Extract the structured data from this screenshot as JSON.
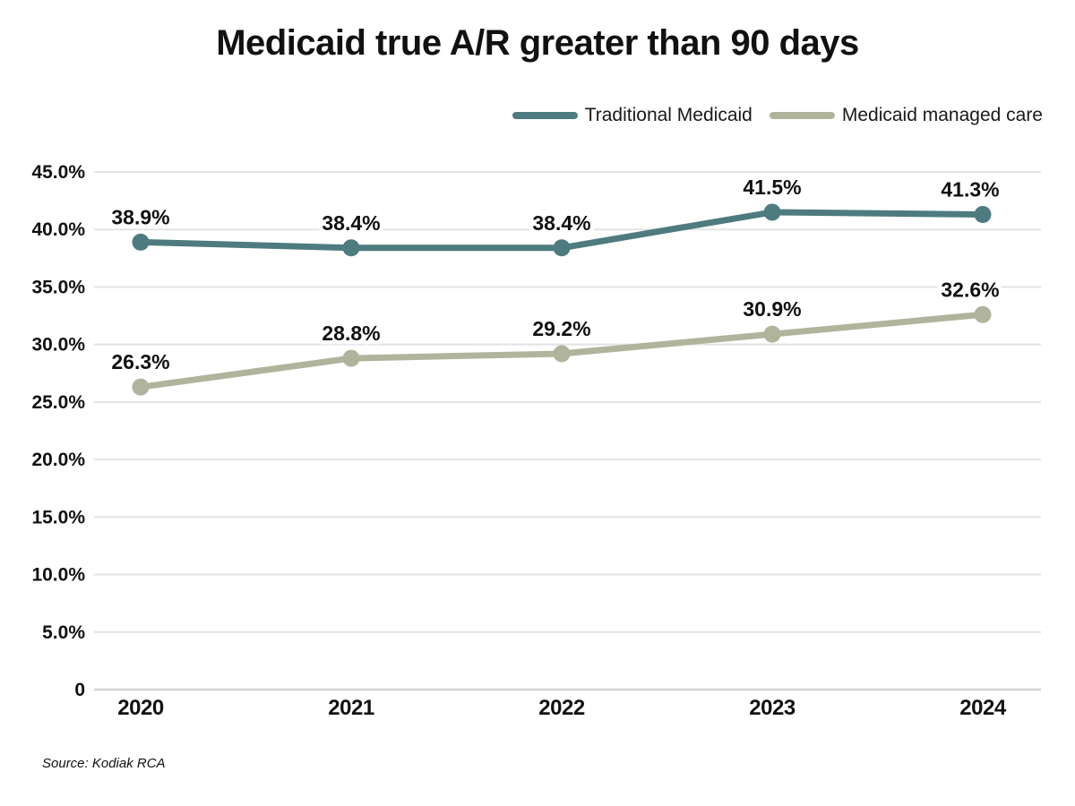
{
  "title": "Medicaid true A/R greater than 90 days",
  "source": "Source: Kodiak RCA",
  "colors": {
    "grid": "#e3e3e3",
    "zero_axis": "#d4d4d4",
    "text": "#111111",
    "background": "#ffffff"
  },
  "chart_data": {
    "type": "line",
    "title": "Medicaid true A/R greater than 90 days",
    "categories": [
      "2020",
      "2021",
      "2022",
      "2023",
      "2024"
    ],
    "series": [
      {
        "name": "Traditional Medicaid",
        "color": "#4e7b7f",
        "values": [
          38.9,
          38.4,
          38.4,
          41.5,
          41.3
        ]
      },
      {
        "name": "Medicaid managed care",
        "color": "#b1b49c",
        "values": [
          26.3,
          28.8,
          29.2,
          30.9,
          32.6
        ]
      }
    ],
    "xlabel": "",
    "ylabel": "",
    "ylim": [
      0,
      45
    ],
    "ytick_step": 5,
    "ytick_labels": [
      "0",
      "5.0%",
      "10.0%",
      "15.0%",
      "20.0%",
      "25.0%",
      "30.0%",
      "35.0%",
      "40.0%",
      "45.0%"
    ],
    "grid": true,
    "data_labels": true,
    "legend_position": "top-right"
  }
}
